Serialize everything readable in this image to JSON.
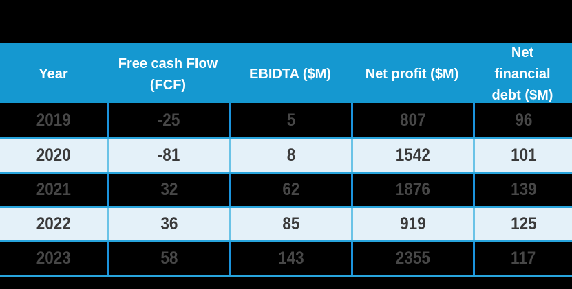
{
  "colors": {
    "header_bg": "#1598D0",
    "header_text": "#FFFFFF",
    "row_border": "#28A4DC",
    "divider_dark": "#1B93DC",
    "divider_light": "#6AC3E7",
    "dark_row_bg": "#000000",
    "light_row_bg": "#E4F1F9",
    "dark_row_text": "#474747",
    "light_row_text": "#3A3A3A",
    "background": "#000000"
  },
  "table": {
    "columns": [
      {
        "label": "Year"
      },
      {
        "label": "Free cash Flow (FCF)"
      },
      {
        "label": "EBIDTA ($M)"
      },
      {
        "label": "Net profit ($M)"
      },
      {
        "label": "Net financial debt ($M)"
      }
    ],
    "rows": [
      {
        "variant": "dark",
        "cells": [
          "2019",
          "-25",
          "5",
          "807",
          "96"
        ]
      },
      {
        "variant": "light",
        "cells": [
          "2020",
          "-81",
          "8",
          "1542",
          "101"
        ]
      },
      {
        "variant": "dark",
        "cells": [
          "2021",
          "32",
          "62",
          "1876",
          "139"
        ]
      },
      {
        "variant": "light",
        "cells": [
          "2022",
          "36",
          "85",
          "919",
          "125"
        ]
      },
      {
        "variant": "dark",
        "cells": [
          "2023",
          "58",
          "143",
          "2355",
          "117"
        ]
      }
    ]
  },
  "chart_data": {
    "type": "table",
    "title": "",
    "columns": [
      "Year",
      "Free cash Flow (FCF)",
      "EBIDTA ($M)",
      "Net profit ($M)",
      "Net financial debt ($M)"
    ],
    "rows": [
      [
        2019,
        -25,
        5,
        807,
        96
      ],
      [
        2020,
        -81,
        8,
        1542,
        101
      ],
      [
        2021,
        32,
        62,
        1876,
        139
      ],
      [
        2022,
        36,
        85,
        919,
        125
      ],
      [
        2023,
        58,
        143,
        2355,
        117
      ]
    ],
    "series": [
      {
        "name": "Free cash Flow (FCF)",
        "values": [
          -25,
          -81,
          32,
          36,
          58
        ]
      },
      {
        "name": "EBIDTA ($M)",
        "values": [
          5,
          8,
          62,
          85,
          143
        ]
      },
      {
        "name": "Net profit ($M)",
        "values": [
          807,
          1542,
          1876,
          919,
          2355
        ]
      },
      {
        "name": "Net financial debt ($M)",
        "values": [
          96,
          101,
          139,
          125,
          117
        ]
      }
    ],
    "categories": [
      2019,
      2020,
      2021,
      2022,
      2023
    ],
    "layout_hints": {
      "header_background": "#1598D0",
      "zebra_rows": [
        "black",
        "light-blue"
      ],
      "grid": "cyan borders"
    }
  }
}
